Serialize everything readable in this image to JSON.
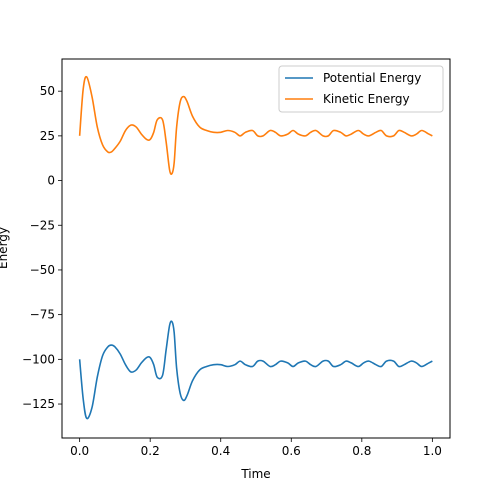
{
  "chart_data": {
    "type": "line",
    "title": "",
    "xlabel": "Time",
    "ylabel": "Energy",
    "xlim": [
      -0.05,
      1.05
    ],
    "ylim": [
      -144,
      68
    ],
    "xticks": [
      0.0,
      0.2,
      0.4,
      0.6,
      0.8,
      1.0
    ],
    "xtick_labels": [
      "0.0",
      "0.2",
      "0.4",
      "0.6",
      "0.8",
      "1.0"
    ],
    "yticks": [
      50,
      25,
      0,
      -25,
      -50,
      -75,
      -100,
      -125
    ],
    "ytick_labels": [
      "50",
      "25",
      "0",
      "−25",
      "−50",
      "−75",
      "−100",
      "−125"
    ],
    "grid": false,
    "legend_position": "top-right",
    "series": [
      {
        "name": "Potential Energy",
        "color": "#1f77b4",
        "x": [
          0.0,
          0.01,
          0.02,
          0.035,
          0.05,
          0.065,
          0.08,
          0.09,
          0.1,
          0.115,
          0.13,
          0.145,
          0.16,
          0.175,
          0.19,
          0.2,
          0.21,
          0.22,
          0.235,
          0.245,
          0.255,
          0.262,
          0.268,
          0.275,
          0.285,
          0.295,
          0.305,
          0.32,
          0.34,
          0.36,
          0.38,
          0.4,
          0.42,
          0.44,
          0.455,
          0.47,
          0.49,
          0.505,
          0.52,
          0.54,
          0.555,
          0.57,
          0.59,
          0.605,
          0.62,
          0.64,
          0.655,
          0.67,
          0.69,
          0.705,
          0.72,
          0.74,
          0.755,
          0.77,
          0.79,
          0.805,
          0.82,
          0.84,
          0.855,
          0.87,
          0.89,
          0.905,
          0.92,
          0.94,
          0.955,
          0.97,
          0.99,
          1.0
        ],
        "y": [
          -100,
          -122,
          -133,
          -127,
          -110,
          -98,
          -93,
          -92,
          -93,
          -97,
          -103,
          -107,
          -106,
          -102,
          -99,
          -99,
          -103,
          -110,
          -109,
          -95,
          -81,
          -79,
          -85,
          -105,
          -119,
          -123,
          -120,
          -112,
          -106,
          -104,
          -103,
          -103,
          -104,
          -103,
          -101,
          -103,
          -104,
          -101,
          -101,
          -104,
          -103,
          -101,
          -102,
          -104,
          -102,
          -101,
          -103,
          -104,
          -101,
          -101,
          -104,
          -103,
          -101,
          -102,
          -104,
          -102,
          -101,
          -103,
          -104,
          -101,
          -101,
          -104,
          -103,
          -101,
          -102,
          -104,
          -102,
          -101
        ]
      },
      {
        "name": "Kinetic Energy",
        "color": "#ff7f0e",
        "x": [
          0.0,
          0.01,
          0.02,
          0.035,
          0.05,
          0.065,
          0.08,
          0.09,
          0.1,
          0.115,
          0.13,
          0.145,
          0.16,
          0.175,
          0.19,
          0.2,
          0.21,
          0.22,
          0.235,
          0.245,
          0.255,
          0.262,
          0.268,
          0.275,
          0.285,
          0.295,
          0.305,
          0.32,
          0.34,
          0.36,
          0.38,
          0.4,
          0.42,
          0.44,
          0.455,
          0.47,
          0.49,
          0.505,
          0.52,
          0.54,
          0.555,
          0.57,
          0.59,
          0.605,
          0.62,
          0.64,
          0.655,
          0.67,
          0.69,
          0.705,
          0.72,
          0.74,
          0.755,
          0.77,
          0.79,
          0.805,
          0.82,
          0.84,
          0.855,
          0.87,
          0.89,
          0.905,
          0.92,
          0.94,
          0.955,
          0.97,
          0.99,
          1.0
        ],
        "y": [
          25,
          51,
          58,
          47,
          30,
          20,
          16,
          16,
          18,
          22,
          28,
          31,
          30,
          26,
          23,
          23,
          27,
          34,
          34,
          22,
          6,
          4,
          10,
          30,
          44,
          47,
          44,
          36,
          30,
          28,
          27,
          27,
          28,
          27,
          25,
          27,
          28,
          25,
          25,
          28,
          27,
          25,
          26,
          28,
          26,
          25,
          27,
          28,
          25,
          25,
          28,
          27,
          25,
          26,
          28,
          26,
          25,
          27,
          28,
          25,
          25,
          28,
          27,
          25,
          26,
          28,
          26,
          25
        ]
      }
    ]
  }
}
